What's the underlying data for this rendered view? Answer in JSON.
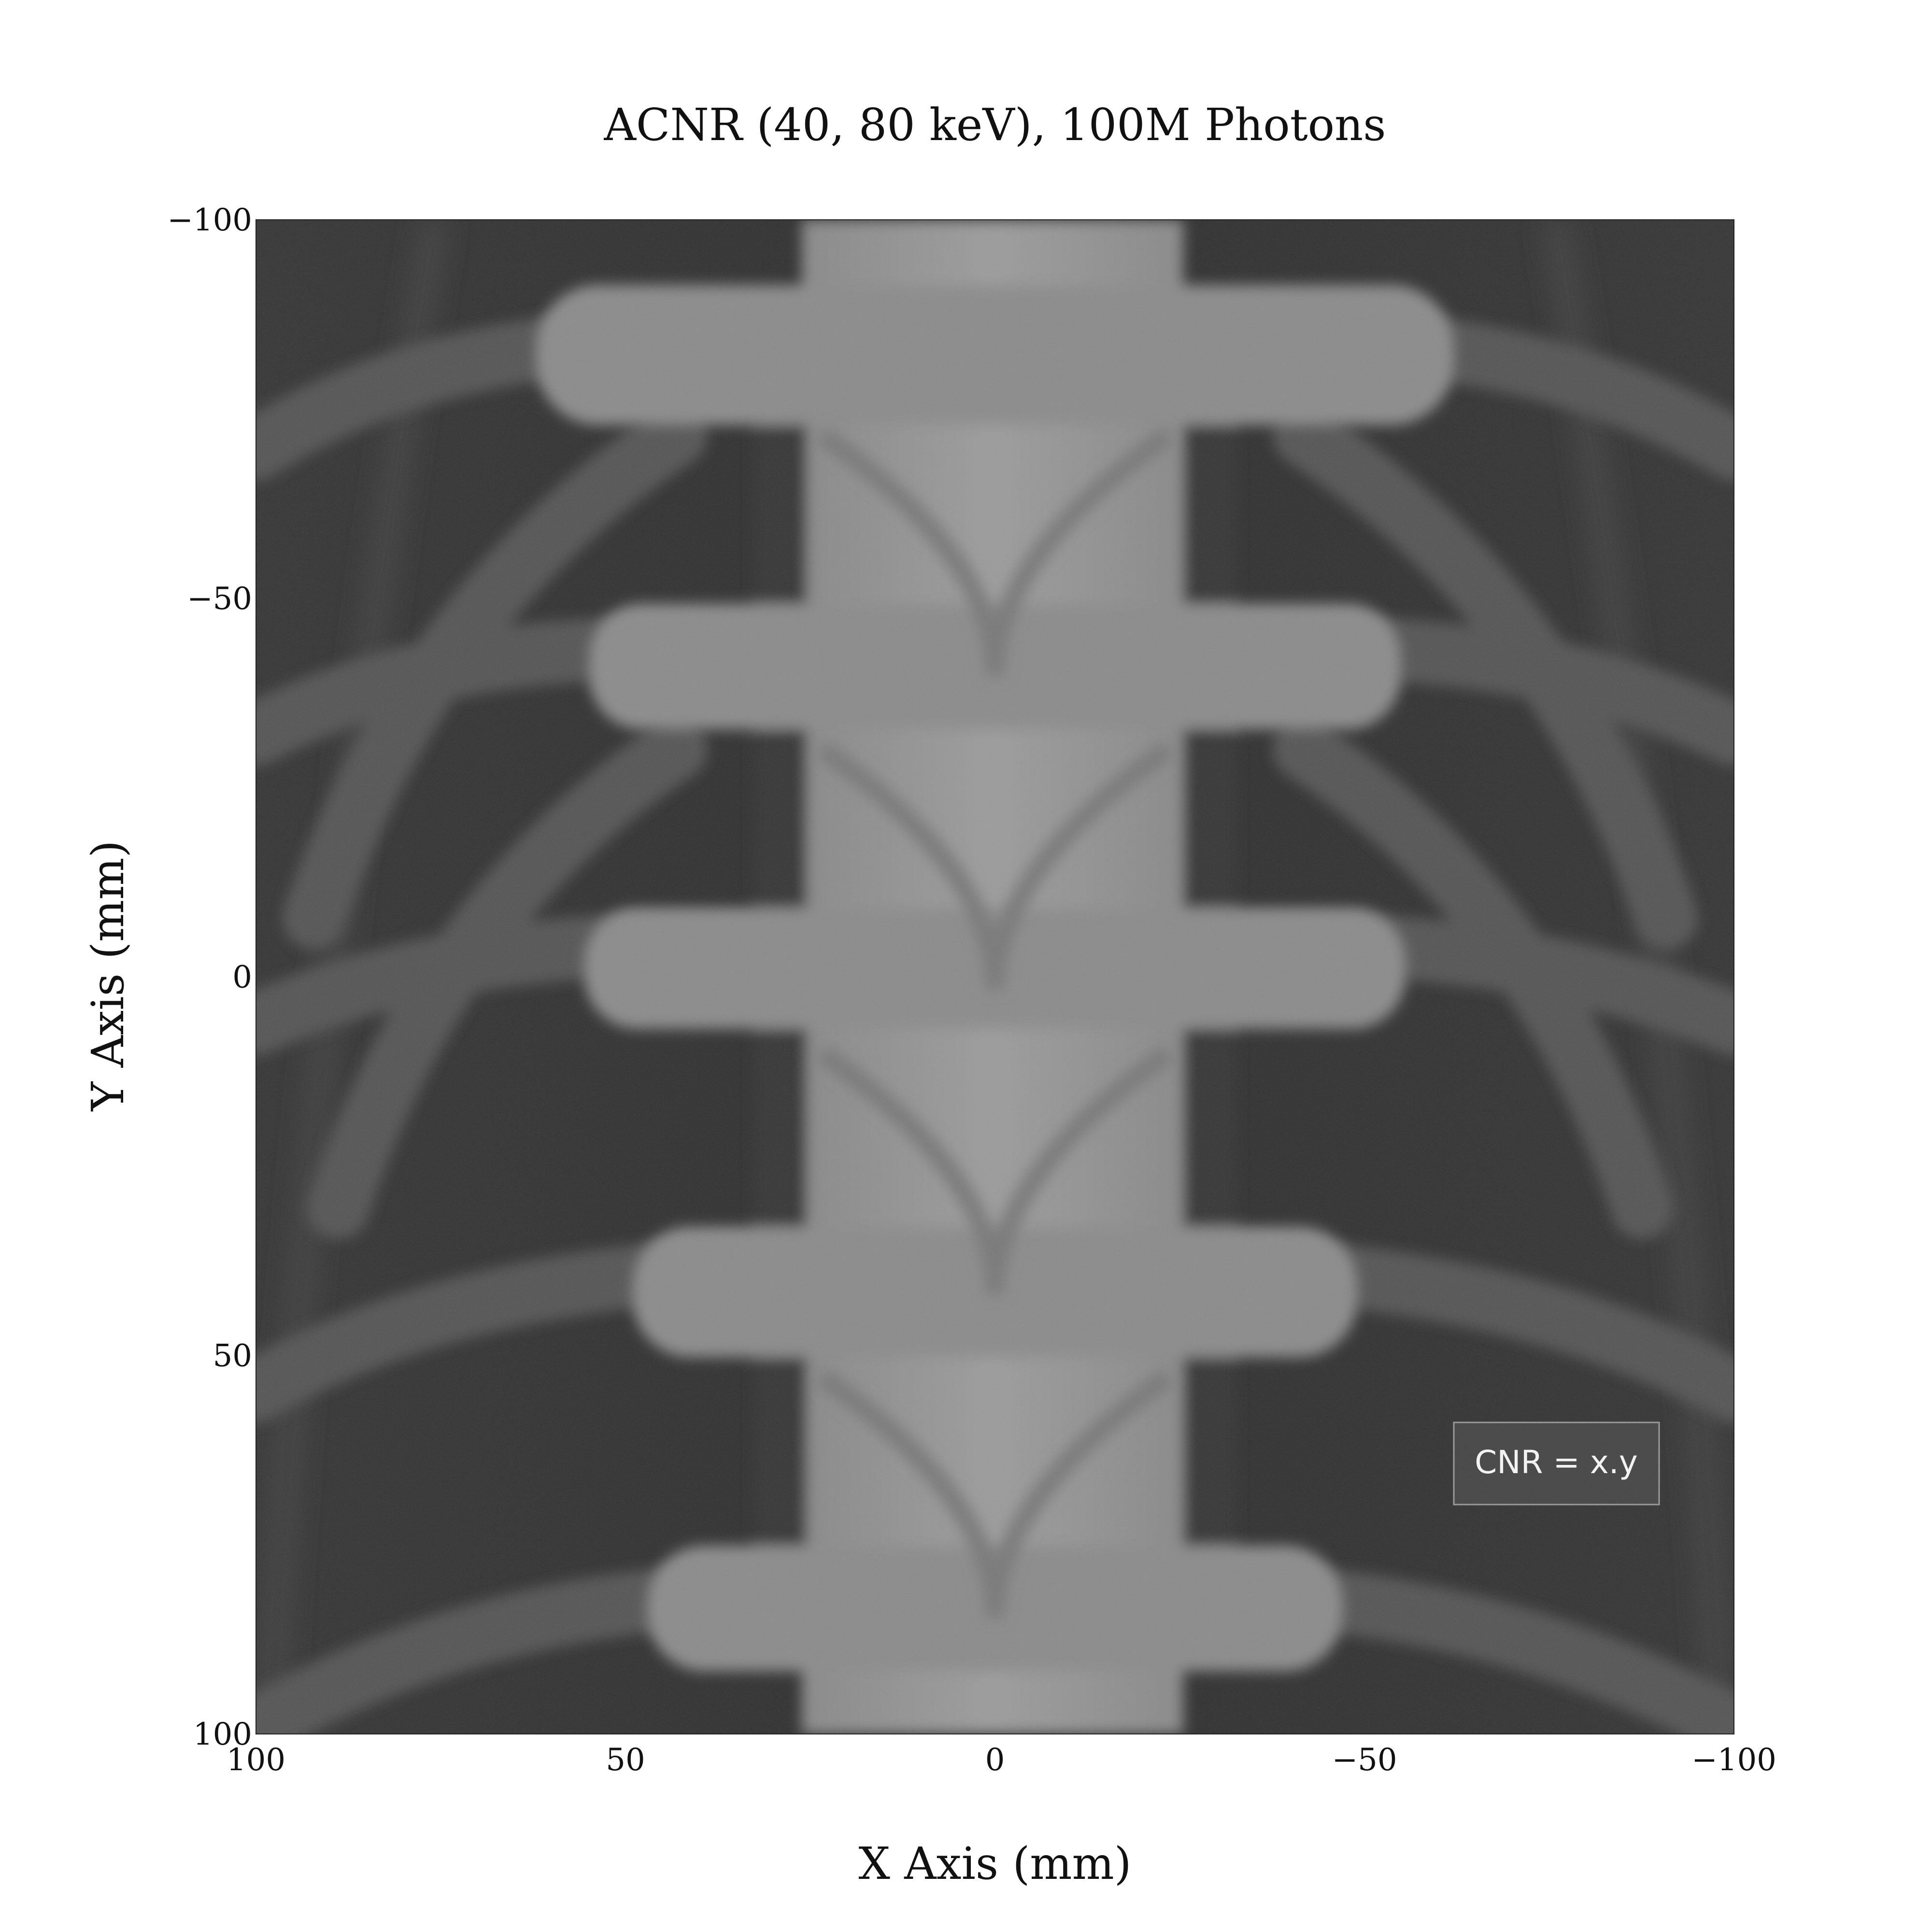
{
  "chart_data": {
    "type": "heatmap",
    "title": "ACNR (40, 80 keV), 100M Photons",
    "xlabel": "X Axis (mm)",
    "ylabel": "Y Axis (mm)",
    "xlim": [
      100,
      -100
    ],
    "ylim": [
      -100,
      100
    ],
    "x_ticks": [
      100,
      50,
      0,
      -50,
      -100
    ],
    "x_tick_labels": [
      "100",
      "50",
      "0",
      "−50",
      "−100"
    ],
    "y_ticks": [
      -100,
      -50,
      0,
      50,
      100
    ],
    "y_tick_labels": [
      "−100",
      "−50",
      "0",
      "50",
      "100"
    ],
    "grid": false,
    "colormap": "gray",
    "image_content": "x-ray projection of thoracic spine and ribs",
    "annotation": {
      "text": "CNR = x.y",
      "position": "bottom-right",
      "x": -70,
      "y": 65
    }
  }
}
